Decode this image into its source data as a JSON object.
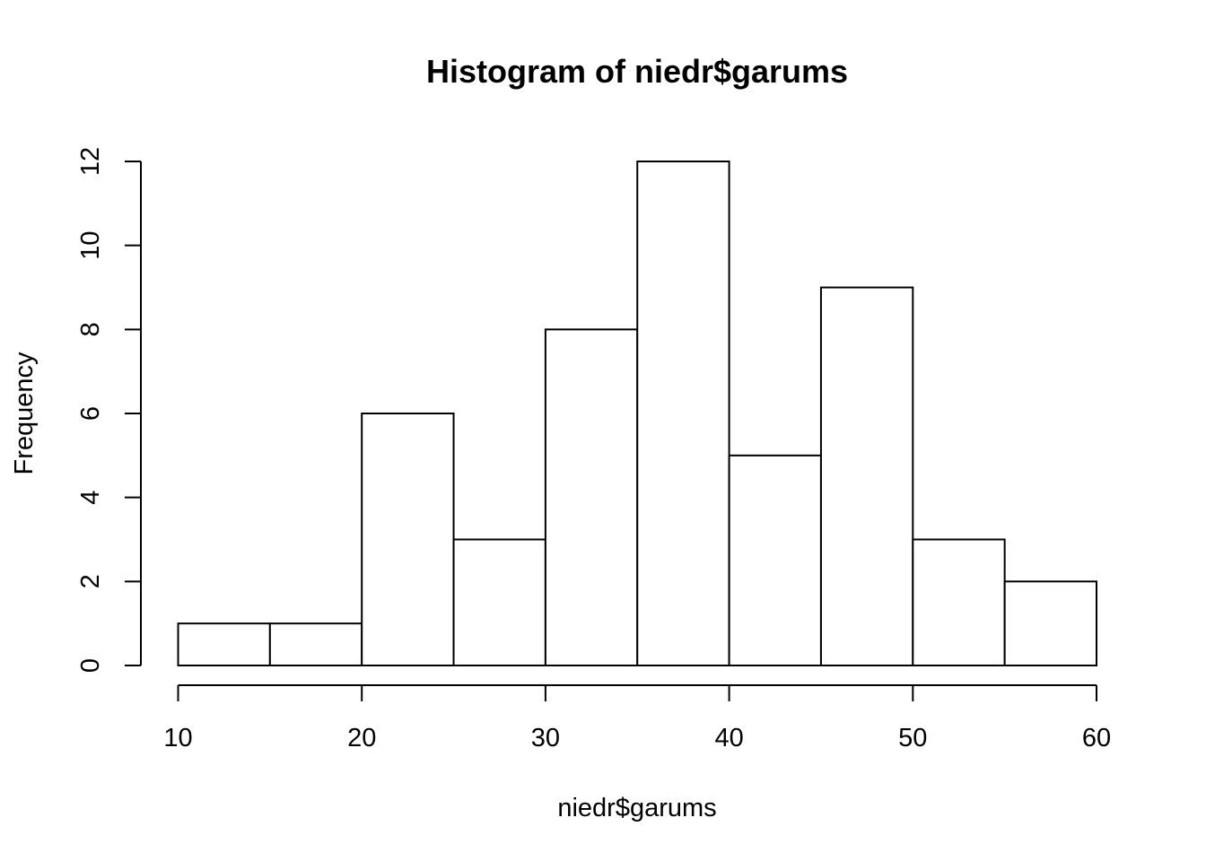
{
  "chart_data": {
    "type": "bar",
    "title": "Histogram of niedr$garums",
    "xlabel": "niedr$garums",
    "ylabel": "Frequency",
    "bin_edges": [
      10,
      15,
      20,
      25,
      30,
      35,
      40,
      45,
      50,
      55,
      60
    ],
    "values": [
      1,
      1,
      6,
      3,
      8,
      12,
      5,
      9,
      3,
      2
    ],
    "x_ticks": [
      10,
      20,
      30,
      40,
      50,
      60
    ],
    "y_ticks": [
      0,
      2,
      4,
      6,
      8,
      10,
      12
    ],
    "xlim": [
      10,
      60
    ],
    "ylim": [
      0,
      12
    ],
    "grid": false
  }
}
